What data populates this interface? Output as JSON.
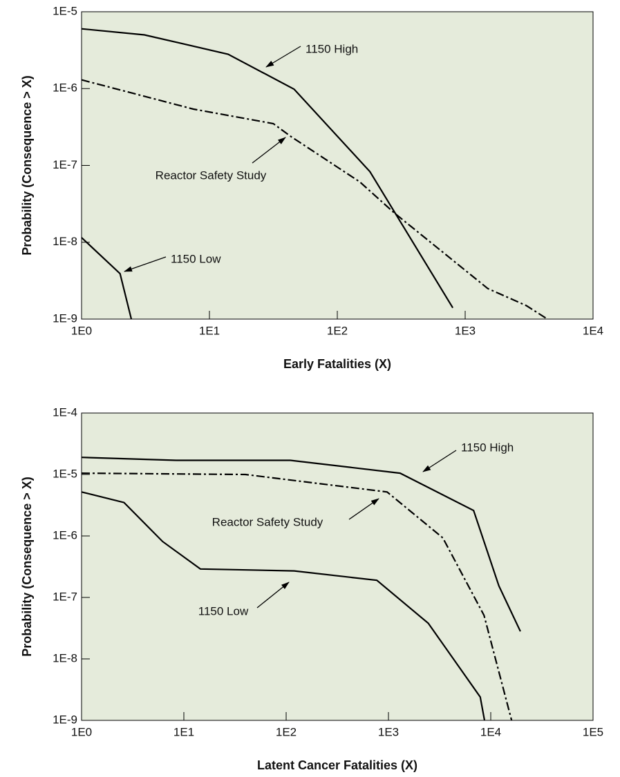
{
  "chart_data": [
    {
      "type": "line",
      "xlabel": "Early Fatalities (X)",
      "ylabel": "Probability (Consequence > X)",
      "xscale": "log",
      "yscale": "log",
      "background": "#e5ebdb",
      "xlim": [
        1,
        10000
      ],
      "ylim": [
        1e-09,
        1e-05
      ],
      "xticks": [
        {
          "value": 1,
          "label": "1E0"
        },
        {
          "value": 10,
          "label": "1E1"
        },
        {
          "value": 100,
          "label": "1E2"
        },
        {
          "value": 1000,
          "label": "1E3"
        },
        {
          "value": 10000,
          "label": "1E4"
        }
      ],
      "yticks": [
        {
          "value": 1e-09,
          "label": "1E-9"
        },
        {
          "value": 1e-08,
          "label": "1E-8"
        },
        {
          "value": 1e-07,
          "label": "1E-7"
        },
        {
          "value": 1e-06,
          "label": "1E-6"
        },
        {
          "value": 1e-05,
          "label": "1E-5"
        }
      ],
      "series": [
        {
          "name": "1150 High",
          "color": "#000000",
          "dash": "solid",
          "x": [
            1,
            3.1,
            14,
            46,
            180,
            800
          ],
          "values": [
            6e-06,
            5e-06,
            2.8e-06,
            9.8e-07,
            8.3e-08,
            1.4e-09
          ]
        },
        {
          "name": "Reactor Safety Study",
          "color": "#000000",
          "dash": "dashdot",
          "x": [
            1,
            7.5,
            31.6,
            43,
            150,
            280,
            1500,
            3000,
            4400
          ],
          "values": [
            1.3e-06,
            5.4e-07,
            3.5e-07,
            2.4e-07,
            6.1e-08,
            2.4e-08,
            2.5e-09,
            1.5e-09,
            1e-09
          ]
        },
        {
          "name": "1150 Low",
          "color": "#000000",
          "dash": "solid",
          "x": [
            1,
            2.0,
            2.45
          ],
          "values": [
            1.15e-08,
            3.9e-09,
            1e-09
          ]
        }
      ]
    },
    {
      "type": "line",
      "xlabel": "Latent Cancer Fatalities (X)",
      "ylabel": "Probability (Consequence > X)",
      "xscale": "log",
      "yscale": "log",
      "background": "#e5ebdb",
      "xlim": [
        1,
        100000
      ],
      "ylim": [
        1e-09,
        0.0001
      ],
      "xticks": [
        {
          "value": 1,
          "label": "1E0"
        },
        {
          "value": 10,
          "label": "1E1"
        },
        {
          "value": 100,
          "label": "1E2"
        },
        {
          "value": 1000,
          "label": "1E3"
        },
        {
          "value": 10000,
          "label": "1E4"
        },
        {
          "value": 100000,
          "label": "1E5"
        }
      ],
      "yticks": [
        {
          "value": 1e-09,
          "label": "1E-9"
        },
        {
          "value": 1e-08,
          "label": "1E-8"
        },
        {
          "value": 1e-07,
          "label": "1E-7"
        },
        {
          "value": 1e-06,
          "label": "1E-6"
        },
        {
          "value": 1e-05,
          "label": "1E-5"
        },
        {
          "value": 0.0001,
          "label": "1E-4"
        }
      ],
      "series": [
        {
          "name": "1150 High",
          "color": "#000000",
          "dash": "solid",
          "x": [
            1,
            8.5,
            110,
            1300,
            6800,
            12000,
            19500
          ],
          "values": [
            1.9e-05,
            1.7e-05,
            1.7e-05,
            1.05e-05,
            2.6e-06,
            1.55e-07,
            2.8e-08
          ]
        },
        {
          "name": "Reactor Safety Study",
          "color": "#000000",
          "dash": "dashdot",
          "x": [
            1,
            40,
            970,
            3400,
            8600,
            16000
          ],
          "values": [
            1.05e-05,
            1e-05,
            5.2e-06,
            9.3e-07,
            5.1e-08,
            1e-09
          ]
        },
        {
          "name": "1150 Low",
          "color": "#000000",
          "dash": "solid",
          "x": [
            1,
            2.6,
            6.2,
            14.5,
            120,
            770,
            2450,
            7900,
            8700
          ],
          "values": [
            5.2e-06,
            3.5e-06,
            8.1e-07,
            2.9e-07,
            2.7e-07,
            1.9e-07,
            3.8e-08,
            2.4e-09,
            1e-09
          ]
        }
      ]
    }
  ]
}
